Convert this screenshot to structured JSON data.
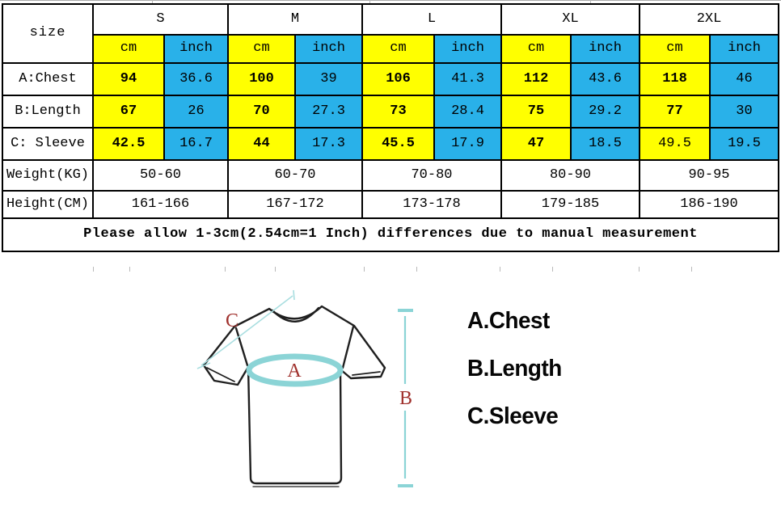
{
  "table": {
    "corner_label": "size",
    "sizes": [
      "S",
      "M",
      "L",
      "XL",
      "2XL"
    ],
    "unit_headers": [
      "cm",
      "inch"
    ],
    "measurement_rows": [
      {
        "label": "A:Chest",
        "cm": [
          "94",
          "100",
          "106",
          "112",
          "118"
        ],
        "inch": [
          "36.6",
          "39",
          "41.3",
          "43.6",
          "46"
        ],
        "cm_bold": [
          true,
          true,
          true,
          true,
          true
        ]
      },
      {
        "label": "B:Length",
        "cm": [
          "67",
          "70",
          "73",
          "75",
          "77"
        ],
        "inch": [
          "26",
          "27.3",
          "28.4",
          "29.2",
          "30"
        ],
        "cm_bold": [
          true,
          true,
          true,
          true,
          true
        ]
      },
      {
        "label": "C: Sleeve",
        "cm": [
          "42.5",
          "44",
          "45.5",
          "47",
          "49.5"
        ],
        "inch": [
          "16.7",
          "17.3",
          "17.9",
          "18.5",
          "19.5"
        ],
        "cm_bold": [
          true,
          true,
          true,
          true,
          false
        ]
      }
    ],
    "range_rows": [
      {
        "label": "Weight(KG)",
        "values": [
          "50-60",
          "60-70",
          "70-80",
          "80-90",
          "90-95"
        ]
      },
      {
        "label": "Height(CM)",
        "values": [
          "161-166",
          "167-172",
          "173-178",
          "179-185",
          "186-190"
        ]
      }
    ],
    "note": "Please allow 1-3cm(2.54cm=1 Inch) differences due to manual measurement",
    "colors": {
      "cm_bg": "#FFFF00",
      "inch_bg": "#29B1E9",
      "border": "#000000"
    }
  },
  "diagram": {
    "letter_a": "A",
    "letter_b": "B",
    "letter_c": "C",
    "legend": [
      "A.Chest",
      "B.Length",
      "C.Sleeve"
    ],
    "line_color": "#8BD4D6",
    "thin_line_color": "#A9DEE0",
    "letter_color": "#A0312D",
    "outline_color": "#1f1f1f"
  }
}
